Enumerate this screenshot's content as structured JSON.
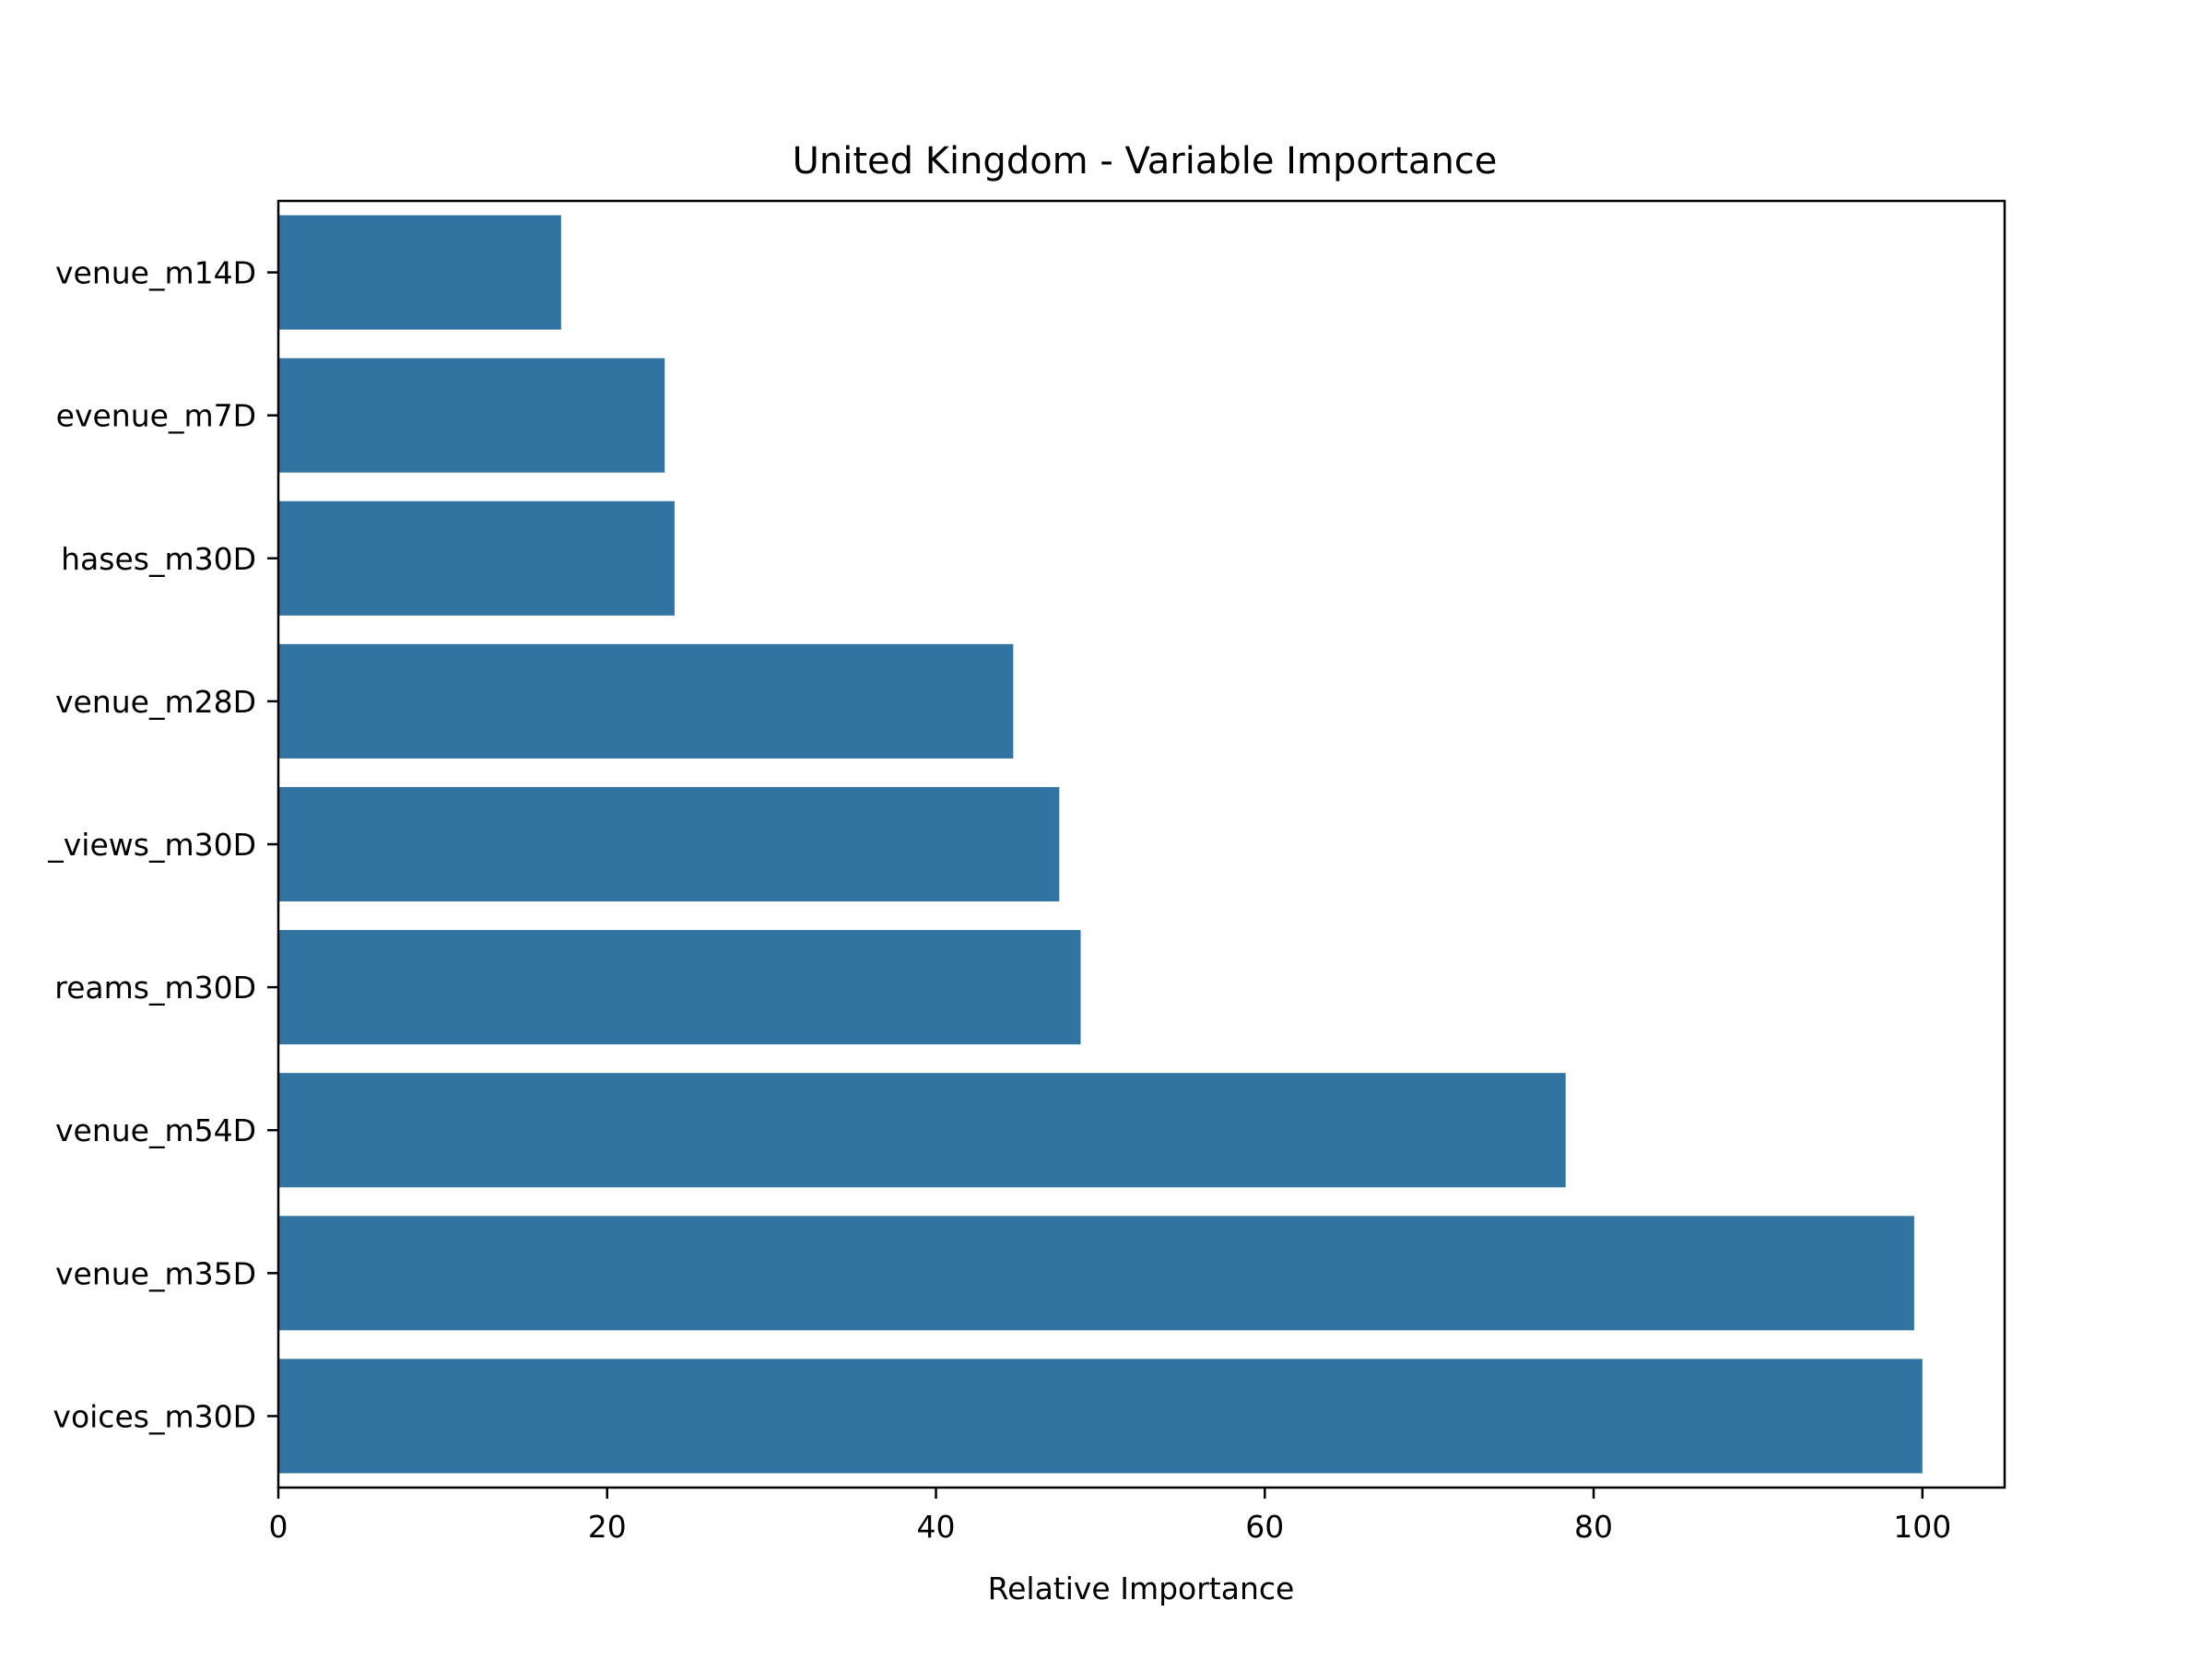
{
  "chart_data": {
    "type": "bar",
    "orientation": "horizontal",
    "title": "United Kingdom - Variable Importance",
    "xlabel": "Relative Importance",
    "ylabel": "",
    "xlim": [
      0,
      105
    ],
    "xticks": [
      "0",
      "20",
      "40",
      "60",
      "80",
      "100"
    ],
    "xtick_values": [
      0,
      20,
      40,
      60,
      80,
      100
    ],
    "categories": [
      "venue_m14D",
      "evenue_m7D",
      "hases_m30D",
      "venue_m28D",
      "_views_m30D",
      "reams_m30D",
      "venue_m54D",
      "venue_m35D",
      "voices_m30D"
    ],
    "values": [
      17.2,
      23.5,
      24.1,
      44.7,
      47.5,
      48.8,
      78.3,
      99.5,
      100
    ],
    "bar_color": "#3274a1",
    "grid": false,
    "legend": "none"
  }
}
